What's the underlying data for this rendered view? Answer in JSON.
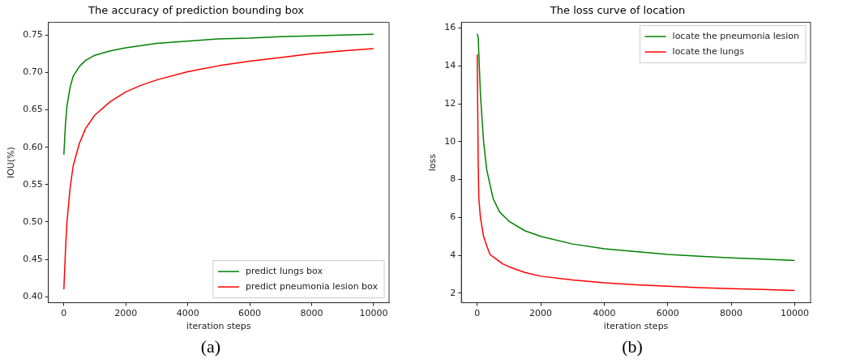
{
  "chart_data": [
    {
      "type": "line",
      "title": "The accuracy of prediction bounding box",
      "xlabel": "iteration steps",
      "ylabel": "IOU(%)",
      "annotations": [
        "(a)"
      ],
      "xlim": [
        -500,
        10500
      ],
      "xticks": [
        0,
        2000,
        4000,
        6000,
        8000,
        10000
      ],
      "ylim": [
        0.392,
        0.767
      ],
      "yticks": [
        {
          "value": 0.4,
          "label": "0.40"
        },
        0.45,
        {
          "value": 0.5,
          "label": "0.50"
        },
        0.55,
        {
          "value": 0.6,
          "label": "0.60"
        },
        0.65,
        {
          "value": 0.7,
          "label": "0.70"
        },
        0.75
      ],
      "grid": false,
      "legend": "bottom right",
      "marker": "none",
      "line_style": "solid",
      "series": [
        {
          "name": "predict lungs box",
          "color": "#008000",
          "x": [
            0,
            50,
            100,
            200,
            300,
            500,
            700,
            1000,
            1500,
            2000,
            3000,
            4000,
            5000,
            6000,
            7000,
            8000,
            9000,
            10000
          ],
          "values": [
            0.59,
            0.63,
            0.655,
            0.68,
            0.695,
            0.708,
            0.716,
            0.723,
            0.729,
            0.733,
            0.739,
            0.742,
            0.745,
            0.746,
            0.748,
            0.749,
            0.75,
            0.751
          ]
        },
        {
          "name": "predict pneumonia lesion box",
          "color": "#ff0000",
          "x": [
            0,
            50,
            100,
            200,
            300,
            500,
            700,
            1000,
            1500,
            2000,
            2500,
            3000,
            4000,
            5000,
            6000,
            7000,
            8000,
            9000,
            10000
          ],
          "values": [
            0.41,
            0.46,
            0.5,
            0.545,
            0.575,
            0.605,
            0.625,
            0.643,
            0.661,
            0.674,
            0.683,
            0.69,
            0.701,
            0.709,
            0.715,
            0.72,
            0.725,
            0.729,
            0.732
          ]
        }
      ]
    },
    {
      "type": "line",
      "title": "The loss curve of location",
      "xlabel": "iteration steps",
      "ylabel": "loss",
      "annotations": [
        "(b)"
      ],
      "xlim": [
        -500,
        10500
      ],
      "xticks": [
        0,
        2000,
        4000,
        6000,
        8000,
        10000
      ],
      "ylim": [
        1.5,
        16.3
      ],
      "yticks": [
        2,
        4,
        6,
        8,
        10,
        12,
        14,
        16
      ],
      "grid": false,
      "legend": "top right",
      "marker": "none",
      "line_style": "solid",
      "series": [
        {
          "name": "locate the pneumonia lesion",
          "color": "#008000",
          "x": [
            0,
            30,
            100,
            200,
            300,
            500,
            700,
            1000,
            1500,
            2000,
            3000,
            4000,
            5000,
            6000,
            7000,
            8000,
            9000,
            10000
          ],
          "values": [
            15.7,
            15.5,
            12.5,
            10,
            8.5,
            7,
            6.3,
            5.8,
            5.3,
            5,
            4.6,
            4.35,
            4.2,
            4.05,
            3.95,
            3.87,
            3.8,
            3.73
          ]
        },
        {
          "name": "locate the lungs",
          "color": "#ff0000",
          "x": [
            0,
            30,
            50,
            100,
            200,
            300,
            400,
            600,
            800,
            1000,
            1500,
            2000,
            3000,
            4000,
            5000,
            6000,
            7000,
            8000,
            9000,
            10000
          ],
          "values": [
            14.6,
            8.8,
            7,
            6,
            5,
            4.5,
            4.05,
            3.8,
            3.55,
            3.4,
            3.1,
            2.9,
            2.7,
            2.55,
            2.45,
            2.37,
            2.3,
            2.24,
            2.2,
            2.15
          ]
        }
      ]
    }
  ]
}
